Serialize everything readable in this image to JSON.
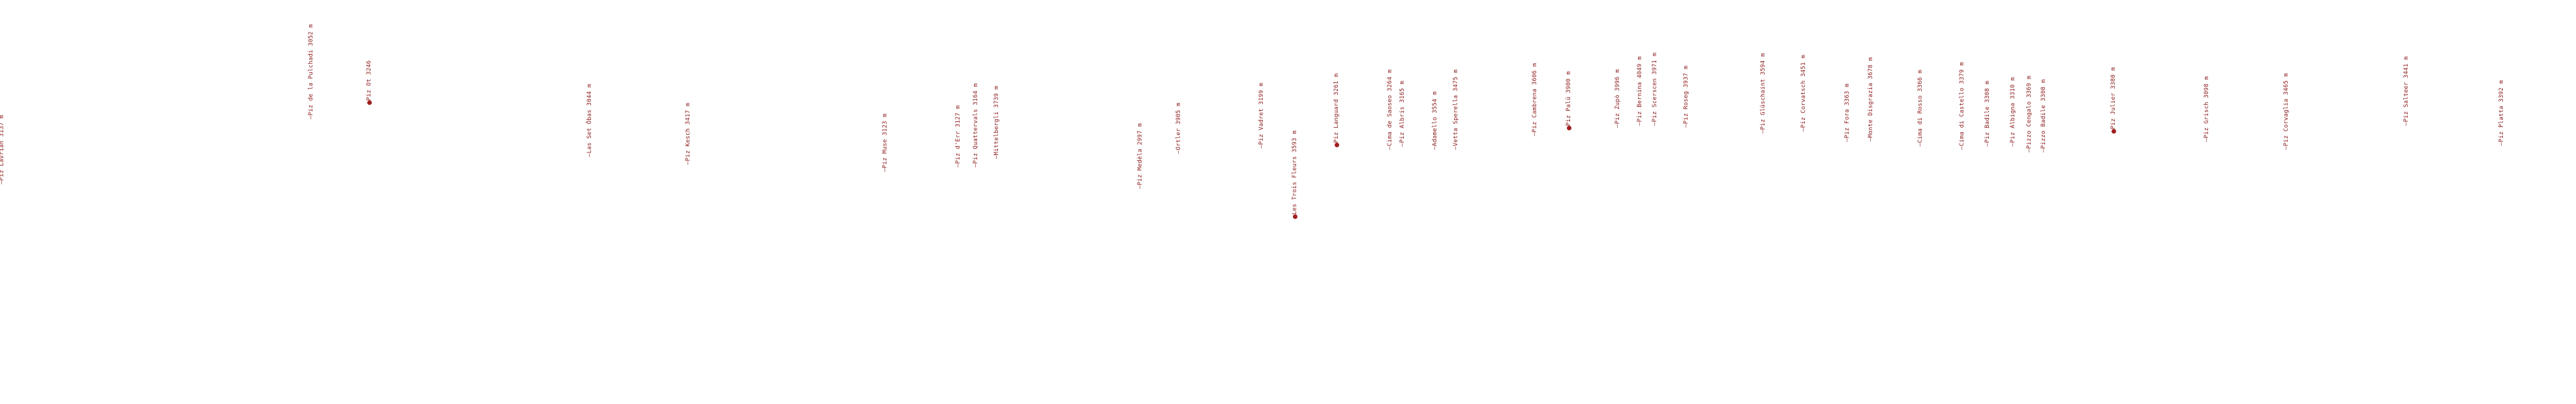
{
  "peaks": [
    {
      "label": "—Piz Lavrian 3137 m"
    },
    {
      "label": "—Piz de la Pulchadi 3052 m"
    },
    {
      "label": "—Piz Ot 3246",
      "dot": true
    },
    {
      "label": "—Las Set Ōbas 3044 m"
    },
    {
      "label": "—Piz Kesch 3417 m"
    },
    {
      "label": "—Piz Muse 3123 m"
    },
    {
      "label": "—Piz d'Err 3127 m"
    },
    {
      "label": "—Piz Quattervals 3164 m"
    },
    {
      "label": "—Mittelbergli 3739 m"
    },
    {
      "label": "—Piz Medèla 2997 m"
    },
    {
      "label": "—Ortler 3905 m"
    },
    {
      "label": "—Piz Vadret 3199 m"
    },
    {
      "label": "—Les Trois Fleurs 3593 m",
      "dot": true
    },
    {
      "label": "—Piz Languard 3261 m",
      "dot": true
    },
    {
      "label": "—Cima de Saoseo 3264 m"
    },
    {
      "label": "—Piz Albris 3165 m"
    },
    {
      "label": "—Adamello 3554 m"
    },
    {
      "label": "—Vetta Sperella 3475 m"
    },
    {
      "label": "—Piz Cambrena 3606 m"
    },
    {
      "label": "—Piz Palü 3900 m",
      "dot": true
    },
    {
      "label": "—Piz Zupò 3996 m"
    },
    {
      "label": "—Piz Bernina 4049 m"
    },
    {
      "label": "—Piz Scerscen 3971 m"
    },
    {
      "label": "—Piz Roseg 3937 m"
    },
    {
      "label": "—Piz Glüschaint 3594 m"
    },
    {
      "label": "—Piz Corvatsch 3451 m"
    },
    {
      "label": "—Piz Fora 3363 m"
    },
    {
      "label": "—Monte Disgrazia 3678 m"
    },
    {
      "label": "—Cima di Rosso 3366 m"
    },
    {
      "label": "—Cima di Castello 3379 m"
    },
    {
      "label": "—Piz Badile 3308 m"
    },
    {
      "label": "—Piz Albigna 3310 m"
    },
    {
      "label": "—Pizzo Cengalo 3369 m"
    },
    {
      "label": "—Pizzo Badile 3308 m"
    },
    {
      "label": "—Piz Julier 3380 m",
      "dot": true
    },
    {
      "label": "—Piz Grisch 3098 m"
    },
    {
      "label": "—Piz Corvaglia 3465 m"
    },
    {
      "label": "—Piz Salteer 3441 m"
    },
    {
      "label": "—Piz Platta 3392 m"
    }
  ]
}
